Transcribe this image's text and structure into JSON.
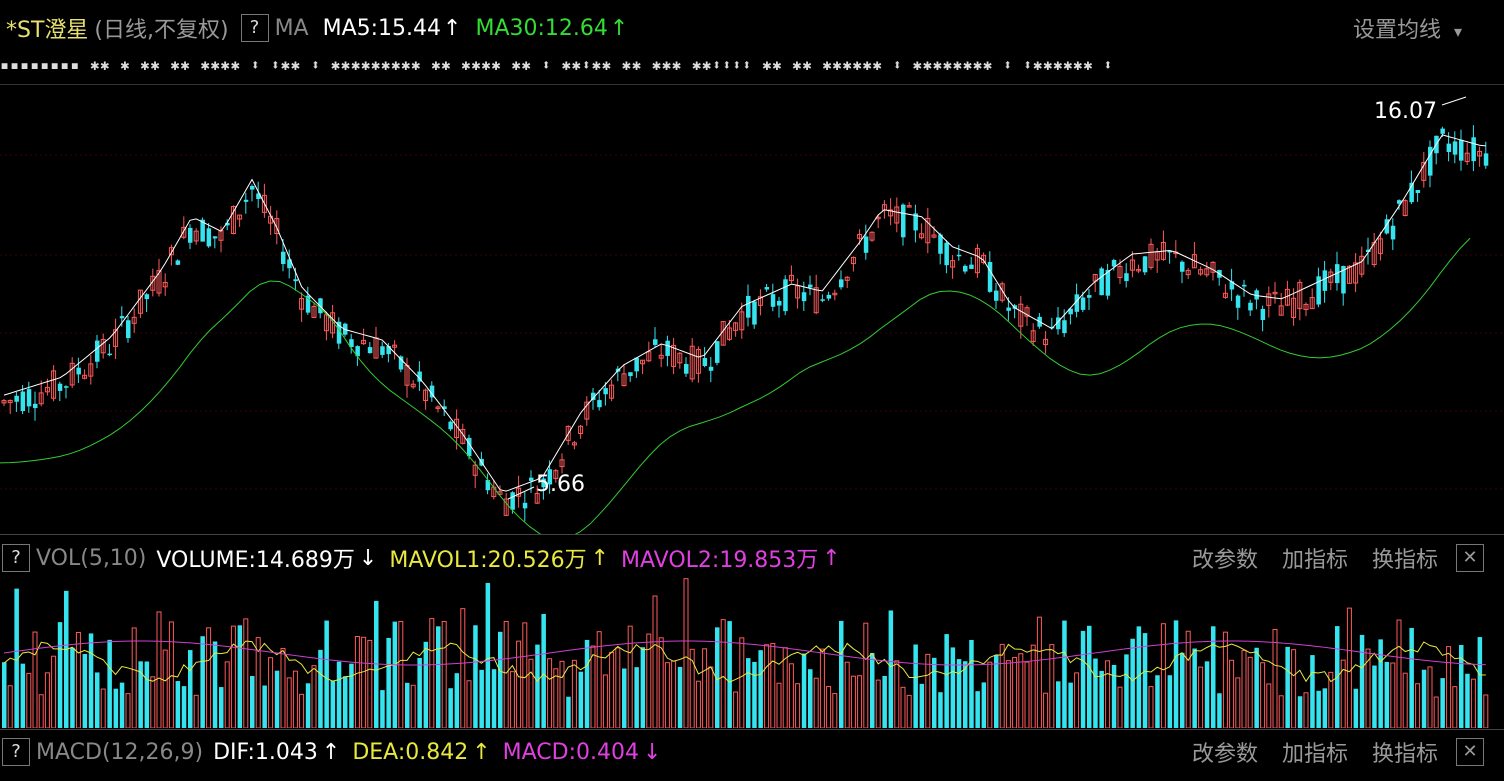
{
  "main_header": {
    "stock_name": "*ST澄星",
    "period": "(日线,不复权)",
    "help": "?",
    "indicator": "MA",
    "ma5": "MA5:15.44",
    "ma5_arrow": "↑",
    "ma30": "MA30:12.64",
    "ma30_arrow": "↑",
    "settings": "设置均线",
    "settings_arrow": "▾"
  },
  "event_markers": "▪▪▪▪▪▪▪▪   ✱✱ ✱ ✱✱   ✱✱   ✱✱✱✱   ⬍    ⬍✱✱ ⬍ ✱✱✱✱✱✱✱✱✱   ✱✱    ✱✱✱✱ ✱✱  ⬍  ✱✱⬍✱✱  ✱✱ ✱✱✱  ✱✱⬍⬍⬍⬍ ✱✱   ✱✱   ✱✱✱✱✱✱  ⬍  ✱✱✱✱✱✱✱✱  ⬍  ⬍✱✱✱✱✱✱  ⬍",
  "price_labels": {
    "high": "16.07",
    "low": "5.66"
  },
  "vol_header": {
    "help": "?",
    "name": "VOL(5,10)",
    "volume": "VOLUME:14.689万",
    "volume_arrow": "↓",
    "mavol1": "MAVOL1:20.526万",
    "mavol1_arrow": "↑",
    "mavol2": "MAVOL2:19.853万",
    "mavol2_arrow": "↑"
  },
  "macd_header": {
    "help": "?",
    "name": "MACD(12,26,9)",
    "dif": "DIF:1.043",
    "dif_arrow": "↑",
    "dea": "DEA:0.842",
    "dea_arrow": "↑",
    "macd": "MACD:0.404",
    "macd_arrow": "↓"
  },
  "panel_buttons": {
    "change_params": "改参数",
    "add_indicator": "加指标",
    "switch_indicator": "换指标",
    "close": "✕"
  },
  "colors": {
    "up": "#ff5a5a",
    "down": "#35e4ee",
    "ma5": "#ffffff",
    "ma30": "#33cc33",
    "mavol1": "#e8e840",
    "mavol2": "#d040d0",
    "grid": "#3a0000"
  },
  "chart_data": {
    "type": "candlestick",
    "price_high": 16.07,
    "price_low": 5.66
  }
}
